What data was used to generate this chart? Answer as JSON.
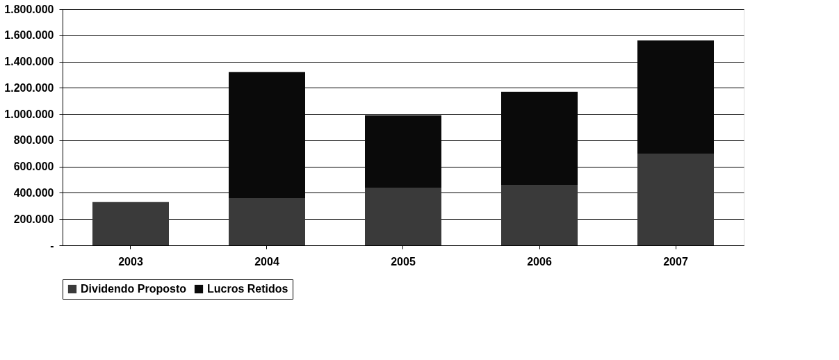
{
  "chart_data": {
    "type": "bar",
    "stacked": true,
    "categories": [
      "2003",
      "2004",
      "2005",
      "2006",
      "2007"
    ],
    "series": [
      {
        "name": "Dividendo Proposto",
        "color": "#3a3a3a",
        "values": [
          330000,
          360000,
          440000,
          456000,
          695000
        ]
      },
      {
        "name": "Lucros Retidos",
        "color": "#0a0a0a",
        "values": [
          0,
          960000,
          550000,
          714000,
          865000
        ]
      }
    ],
    "ylim": [
      0,
      1800000
    ],
    "yticks": [
      {
        "value": 0,
        "label": "-"
      },
      {
        "value": 200000,
        "label": "200.000"
      },
      {
        "value": 400000,
        "label": "400.000"
      },
      {
        "value": 600000,
        "label": "600.000"
      },
      {
        "value": 800000,
        "label": "800.000"
      },
      {
        "value": 1000000,
        "label": "1.000.000"
      },
      {
        "value": 1200000,
        "label": "1.200.000"
      },
      {
        "value": 1400000,
        "label": "1.400.000"
      },
      {
        "value": 1600000,
        "label": "1.600.000"
      },
      {
        "value": 1800000,
        "label": "1.800.000"
      }
    ],
    "grid": "y",
    "legend": "bottom"
  }
}
